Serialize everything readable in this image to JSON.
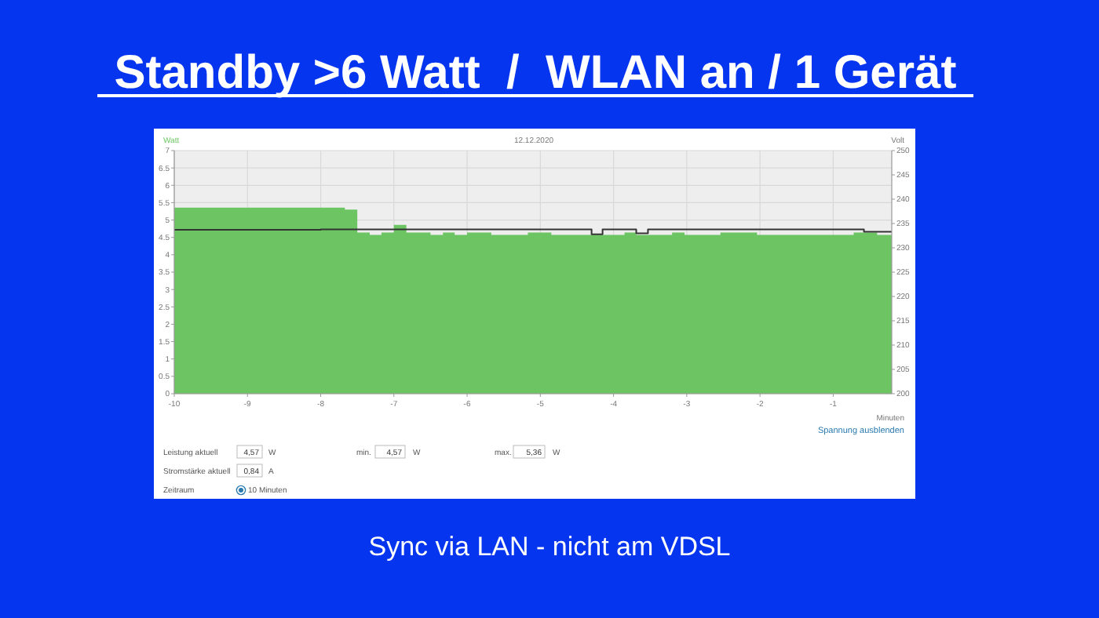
{
  "chart_data": {
    "type": "area",
    "title": "Standby >6 Watt  /  WLAN an / 1 Gerät",
    "subtitle": "12.12.2020",
    "xlabel": "Minuten",
    "ylabel": "Watt",
    "y2label": "Volt",
    "xlim": [
      -10,
      -0.2
    ],
    "xticks": [
      -10,
      -9,
      -8,
      -7,
      -6,
      -5,
      -4,
      -3,
      -2,
      -1
    ],
    "ylim": [
      0,
      7
    ],
    "yticks": [
      0,
      0.5,
      1,
      1.5,
      2,
      2.5,
      3,
      3.5,
      4,
      4.5,
      5,
      5.5,
      6,
      6.5,
      7
    ],
    "y2lim": [
      200,
      250
    ],
    "y2ticks": [
      200,
      205,
      210,
      215,
      220,
      225,
      230,
      235,
      240,
      245,
      250
    ],
    "grid": true,
    "series": [
      {
        "color": "#6cc462",
        "x": [
          -10,
          -7.67,
          -7.5,
          -7.33,
          -7.17,
          -7.0,
          -6.83,
          -6.5,
          -6.33,
          -6.17,
          -6.0,
          -5.67,
          -5.17,
          -4.85,
          -3.85,
          -3.69,
          -3.2,
          -3.03,
          -2.54,
          -2.04,
          -0.72,
          -0.4,
          -0.2
        ],
        "values": [
          5.36,
          5.3,
          4.64,
          4.57,
          4.64,
          4.86,
          4.64,
          4.57,
          4.64,
          4.57,
          4.64,
          4.57,
          4.64,
          4.57,
          4.64,
          4.57,
          4.64,
          4.57,
          4.64,
          4.57,
          4.64,
          4.57,
          4.57
        ]
      },
      {
        "type": "step",
        "axis": "y2",
        "color": "#333333",
        "x": [
          -10,
          -8,
          -4.3,
          -4.15,
          -3.69,
          -3.53,
          -0.58,
          -0.2
        ],
        "values": [
          233.7,
          233.8,
          232.8,
          233.8,
          233.0,
          233.8,
          233.3,
          233.3
        ]
      }
    ],
    "annotations": [
      "Sync via LAN - nicht am VDSL",
      "Spannung ausblenden",
      "Leistung aktuell",
      "4,57",
      "W",
      "min.",
      "4,57",
      "W",
      "max.",
      "5,36",
      "W",
      "Stromstärke aktuell",
      "0,84",
      "A",
      "Zeitraum",
      "10 Minuten"
    ]
  }
}
